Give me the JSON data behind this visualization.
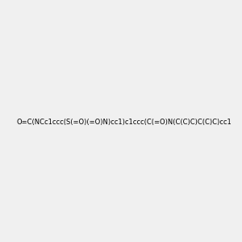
{
  "smiles": "O=C(NCc1ccc(S(=O)(=O)N)cc1)c1ccc(C(=O)N(C(C)C)C(C)C)cc1",
  "image_size": 300,
  "background_color": "#f0f0f0"
}
